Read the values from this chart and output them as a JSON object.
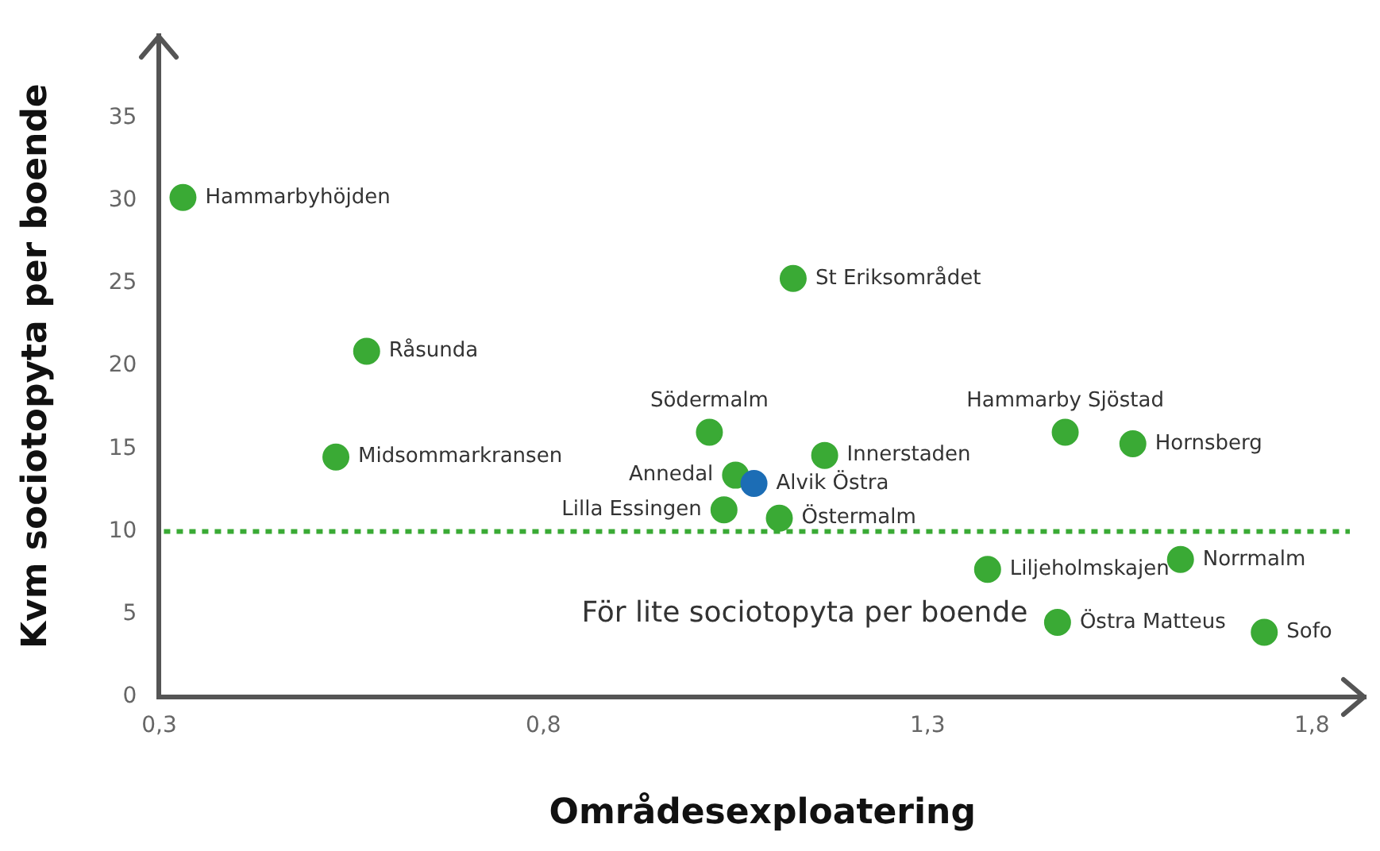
{
  "chart_data": {
    "type": "scatter",
    "xlabel": "Områdesexploatering",
    "ylabel": "Kvm sociotopyta per boende",
    "x": [
      0.331,
      0.57,
      0.53,
      1.125,
      1.016,
      1.05,
      1.074,
      1.035,
      1.107,
      1.166,
      1.479,
      1.567,
      1.378,
      1.629,
      1.469,
      1.738
    ],
    "values": [
      30.2,
      20.9,
      14.5,
      25.3,
      16.0,
      13.4,
      12.9,
      11.3,
      10.8,
      14.6,
      16.0,
      15.3,
      7.7,
      8.3,
      4.5,
      3.9
    ],
    "colors": [
      "#3aaa35",
      "#3aaa35",
      "#3aaa35",
      "#3aaa35",
      "#3aaa35",
      "#3aaa35",
      "#1c6db5",
      "#3aaa35",
      "#3aaa35",
      "#3aaa35",
      "#3aaa35",
      "#3aaa35",
      "#3aaa35",
      "#3aaa35",
      "#3aaa35",
      "#3aaa35"
    ],
    "xlim": [
      0.3,
      1.87
    ],
    "xticks": [
      {
        "value": 0.3,
        "label": "0,3"
      },
      {
        "value": 0.8,
        "label": "0,8"
      },
      {
        "value": 1.3,
        "label": "1,3"
      },
      {
        "value": 1.8,
        "label": "1,8"
      }
    ],
    "ylim": [
      0,
      40
    ],
    "yticks": [
      0,
      5,
      10,
      15,
      20,
      25,
      30,
      35
    ],
    "ref_lines": [
      {
        "axis": "y",
        "value": 10,
        "label": "För lite sociotopyta per boende",
        "color": "#3aaa35",
        "line_style": "dotted"
      }
    ],
    "annotations": [
      {
        "text": "Hammarbyhöjden",
        "x": 0.331,
        "y": 30.2
      },
      {
        "text": "Råsunda",
        "x": 0.57,
        "y": 20.9
      },
      {
        "text": "Midsommarkransen",
        "x": 0.53,
        "y": 14.5
      },
      {
        "text": "St Eriksområdet",
        "x": 1.125,
        "y": 25.3
      },
      {
        "text": "Södermalm",
        "x": 1.016,
        "y": 16.0
      },
      {
        "text": "Annedal",
        "x": 1.05,
        "y": 13.4
      },
      {
        "text": "Alvik Östra",
        "x": 1.074,
        "y": 12.9
      },
      {
        "text": "Lilla Essingen",
        "x": 1.035,
        "y": 11.3
      },
      {
        "text": "Östermalm",
        "x": 1.107,
        "y": 10.8
      },
      {
        "text": "Innerstaden",
        "x": 1.166,
        "y": 14.6
      },
      {
        "text": "Hammarby Sjöstad",
        "x": 1.479,
        "y": 16.0
      },
      {
        "text": "Hornsberg",
        "x": 1.567,
        "y": 15.3
      },
      {
        "text": "Liljeholmskajen",
        "x": 1.378,
        "y": 7.7
      },
      {
        "text": "Norrmalm",
        "x": 1.629,
        "y": 8.3
      },
      {
        "text": "Östra Matteus",
        "x": 1.469,
        "y": 4.5
      },
      {
        "text": "Sofo",
        "x": 1.738,
        "y": 3.9
      }
    ],
    "marker": "circle",
    "grid": false,
    "legend": false
  }
}
